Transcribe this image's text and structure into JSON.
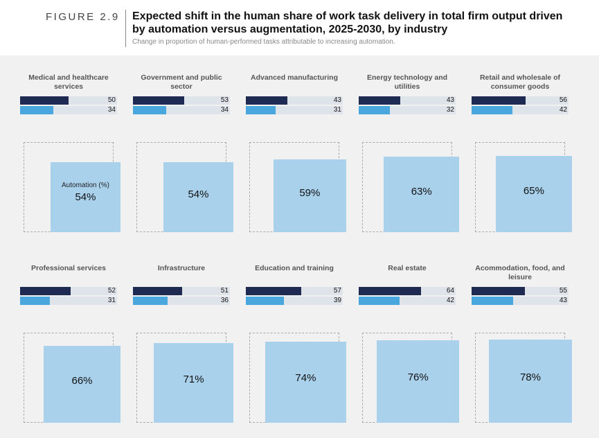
{
  "header": {
    "figure_label": "FIGURE 2.9",
    "title": "Expected shift in the human share of work task delivery in total firm output driven by automation versus augmentation, 2025-2030, by industry",
    "subtitle": "Change in proportion of human-performed tasks attributable to increasing automation."
  },
  "chart_data": {
    "type": "bar",
    "title": "Expected shift in the human share of work task delivery in total firm output driven by automation versus augmentation, 2025-2030, by industry",
    "subtitle": "Change in proportion of human-performed tasks attributable to increasing automation.",
    "box_label": "Automation (%)",
    "colors": {
      "series_1": "#1f2a52",
      "series_2": "#4aa7dd",
      "bar_track": "#dfe4ea",
      "automation_share": "#a9d1ec"
    },
    "categories": [
      "Medical and healthcare services",
      "Government and public sector",
      "Advanced manufacturing",
      "Energy technology and utilities",
      "Retail and wholesale of consumer goods",
      "Professional services",
      "Infrastructure",
      "Education and training",
      "Real estate",
      "Acommodation, food, and leisure"
    ],
    "series": [
      {
        "values": [
          50,
          53,
          43,
          43,
          56,
          52,
          51,
          57,
          64,
          55
        ]
      },
      {
        "values": [
          34,
          34,
          31,
          32,
          42,
          31,
          36,
          39,
          42,
          43
        ]
      }
    ],
    "automation_share": [
      54,
      54,
      59,
      63,
      65,
      66,
      71,
      74,
      76,
      78
    ],
    "automation_share_labels": [
      "54%",
      "54%",
      "59%",
      "63%",
      "65%",
      "66%",
      "71%",
      "74%",
      "76%",
      "78%"
    ]
  }
}
